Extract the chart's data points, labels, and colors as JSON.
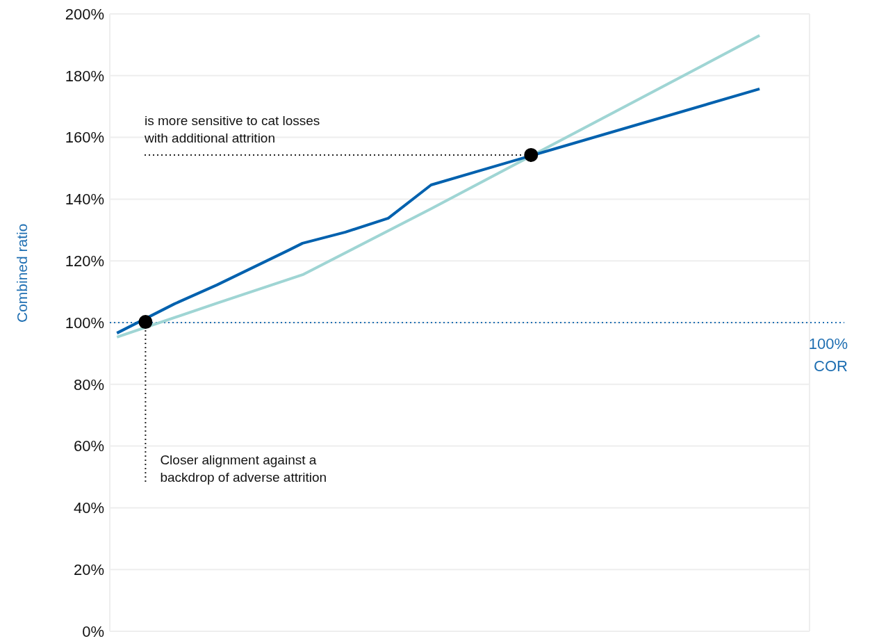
{
  "chart_data": {
    "type": "line",
    "ylabel": "Combined ratio",
    "categories": [
      null,
      null,
      null,
      null,
      null,
      null,
      null,
      null,
      null,
      null,
      null,
      null,
      null,
      null,
      null,
      null,
      null,
      null,
      null,
      null,
      null,
      null,
      null,
      null,
      null,
      null,
      null,
      null,
      null,
      null,
      null,
      null,
      null,
      null,
      null,
      null,
      null,
      null,
      null,
      null,
      null,
      null,
      null,
      null,
      null,
      null,
      null,
      null,
      null
    ],
    "series": [
      {
        "color": "#9fd5d4",
        "values": [
          95.3,
          null,
          null,
          null,
          null,
          null,
          null,
          106.3,
          null,
          null,
          null,
          null,
          null,
          115.5,
          null,
          null,
          null,
          null,
          null,
          null,
          null,
          null,
          136.9,
          null,
          null,
          null,
          null,
          null,
          null,
          null,
          null,
          null,
          null,
          null,
          null,
          null,
          null,
          null,
          null,
          null,
          null,
          null,
          null,
          null,
          null,
          193.0,
          null,
          null,
          null
        ]
      },
      {
        "color": "#0061ae",
        "values": [
          96.6,
          null,
          null,
          null,
          106,
          null,
          null,
          112.2,
          null,
          null,
          null,
          null,
          123.4,
          125.7,
          null,
          null,
          129.3,
          null,
          null,
          133.8,
          null,
          null,
          144.6,
          null,
          null,
          null,
          null,
          null,
          null,
          null,
          null,
          null,
          null,
          null,
          null,
          null,
          null,
          null,
          null,
          null,
          null,
          null,
          null,
          null,
          null,
          175.7,
          null,
          null,
          null
        ]
      },
      {
        "type": "scatter",
        "color": "#000000",
        "marker": "circle",
        "values": [
          null,
          null,
          100.2,
          null,
          null,
          null,
          null,
          null,
          null,
          null,
          null,
          null,
          null,
          null,
          null,
          null,
          null,
          null,
          null,
          null,
          null,
          null,
          null,
          null,
          null,
          null,
          null,
          null,
          null,
          154.3,
          null,
          null,
          null,
          null,
          null,
          null,
          null,
          null,
          null,
          null,
          null,
          null,
          null,
          null,
          null,
          null,
          null,
          null,
          null
        ]
      }
    ],
    "ylim": [
      0,
      200
    ],
    "yticks": [
      {
        "value": 0,
        "label": "0%"
      },
      {
        "value": 20,
        "label": "20%"
      },
      {
        "value": 40,
        "label": "40%"
      },
      {
        "value": 60,
        "label": "60%"
      },
      {
        "value": 80,
        "label": "80%"
      },
      {
        "value": 100,
        "label": "100%"
      },
      {
        "value": 120,
        "label": "120%"
      },
      {
        "value": 140,
        "label": "140%"
      },
      {
        "value": 160,
        "label": "160%"
      },
      {
        "value": 180,
        "label": "180%"
      },
      {
        "value": 200,
        "label": "200%"
      }
    ],
    "grid": true,
    "tick_labels": "y",
    "legend": false,
    "ref_lines": [
      {
        "axis": "y",
        "value": 100,
        "label": "100%\nCOR",
        "color": "#1f6fb2",
        "line_style": "dotted"
      }
    ],
    "annotations": [
      "is more sensitive to cat losses\nwith additional attrition",
      "Closer alignment against a\nbackdrop of adverse attrition"
    ]
  }
}
